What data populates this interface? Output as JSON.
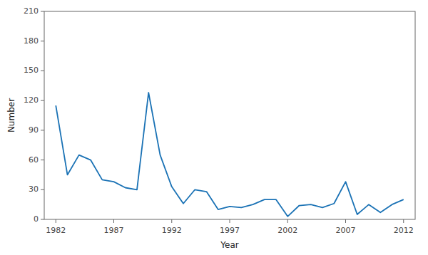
{
  "chart_data": {
    "type": "line",
    "x": [
      1982,
      1983,
      1984,
      1985,
      1986,
      1987,
      1988,
      1989,
      1990,
      1991,
      1992,
      1993,
      1994,
      1995,
      1996,
      1997,
      1998,
      1999,
      2000,
      2001,
      2002,
      2003,
      2004,
      2005,
      2006,
      2007,
      2008,
      2009,
      2010,
      2011,
      2012
    ],
    "values": [
      115,
      45,
      65,
      60,
      40,
      38,
      32,
      30,
      128,
      65,
      33,
      16,
      30,
      28,
      10,
      13,
      12,
      15,
      20,
      20,
      3,
      14,
      15,
      12,
      16,
      38,
      5,
      15,
      7,
      15,
      20
    ],
    "color": "#1a72b5",
    "xlabel": "Year",
    "ylabel": "Number",
    "xlim": [
      1981,
      2013
    ],
    "ylim": [
      0,
      210
    ],
    "xticks": [
      1982,
      1987,
      1992,
      1997,
      2002,
      2007,
      2012
    ],
    "yticks": [
      0,
      30,
      60,
      90,
      120,
      150,
      180,
      210
    ]
  }
}
